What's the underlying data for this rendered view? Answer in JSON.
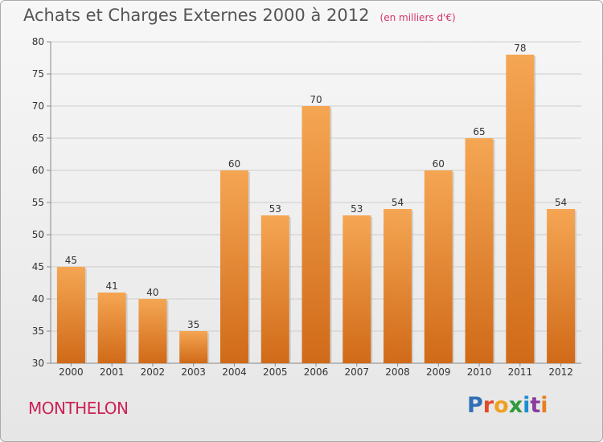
{
  "title": "Achats et Charges Externes 2000 à 2012",
  "unit": "(en milliers d'€)",
  "commune": "MONTHELON",
  "brand": {
    "letters": [
      "P",
      "r",
      "o",
      "x",
      "i",
      "t",
      "i"
    ]
  },
  "colors": {
    "bar_top": "#f5a653",
    "bar_bottom": "#d06a18",
    "grid": "#cccccc",
    "axis": "#888888",
    "text": "#333333",
    "commune": "#cc2255"
  },
  "chart_data": {
    "type": "bar",
    "title": "Achats et Charges Externes 2000 à 2012",
    "subtitle": "(en milliers d'€)",
    "xlabel": "",
    "ylabel": "",
    "categories": [
      "2000",
      "2001",
      "2002",
      "2003",
      "2004",
      "2005",
      "2006",
      "2007",
      "2008",
      "2009",
      "2010",
      "2011",
      "2012"
    ],
    "values": [
      45,
      41,
      40,
      35,
      60,
      53,
      70,
      53,
      54,
      60,
      65,
      78,
      54
    ],
    "ylim": [
      30,
      80
    ],
    "yticks": [
      30,
      35,
      40,
      45,
      50,
      55,
      60,
      65,
      70,
      75,
      80
    ],
    "grid": true,
    "data_labels": true
  }
}
